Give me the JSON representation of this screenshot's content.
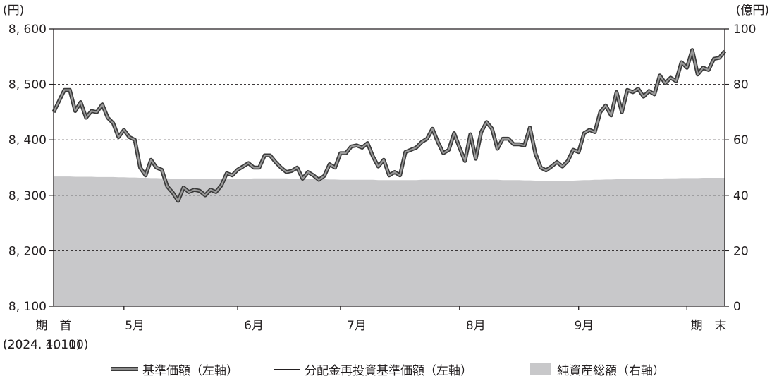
{
  "chart_data": {
    "type": "line",
    "left_unit": "(円)",
    "right_unit": "(億円)",
    "y_left": {
      "min": 8100,
      "max": 8600,
      "ticks": [
        8100,
        8200,
        8300,
        8400,
        8500,
        8600
      ],
      "tick_labels": [
        "8, 100",
        "8, 200",
        "8, 300",
        "8, 400",
        "8, 500",
        "8, 600"
      ]
    },
    "y_right": {
      "min": 0,
      "max": 100,
      "ticks": [
        0,
        20,
        40,
        60,
        80,
        100
      ],
      "tick_labels": [
        "0",
        "20",
        "40",
        "60",
        "80",
        "100"
      ]
    },
    "x_labels": [
      {
        "text": "期　首",
        "sub": "(2024. 4. 10)",
        "index": 0
      },
      {
        "text": "5月",
        "index": 15
      },
      {
        "text": "6月",
        "index": 37
      },
      {
        "text": "7月",
        "index": 56
      },
      {
        "text": "8月",
        "index": 78
      },
      {
        "text": "9月",
        "index": 98
      },
      {
        "text": "期　末",
        "sub": "(2024. 10. 10)",
        "index": 121
      }
    ],
    "month_ticks": [
      13,
      34,
      53,
      75,
      97,
      117
    ],
    "grid": true,
    "series": [
      {
        "name": "基準価額（左軸）",
        "axis": "left",
        "style": "thick",
        "values": [
          8450,
          8470,
          8490,
          8490,
          8452,
          8468,
          8440,
          8452,
          8450,
          8464,
          8440,
          8430,
          8405,
          8418,
          8405,
          8400,
          8350,
          8336,
          8364,
          8350,
          8346,
          8316,
          8305,
          8290,
          8314,
          8306,
          8310,
          8308,
          8300,
          8310,
          8306,
          8318,
          8340,
          8336,
          8346,
          8352,
          8358,
          8350,
          8350,
          8372,
          8372,
          8360,
          8350,
          8342,
          8344,
          8350,
          8330,
          8342,
          8336,
          8328,
          8335,
          8356,
          8350,
          8376,
          8376,
          8388,
          8390,
          8386,
          8394,
          8370,
          8352,
          8364,
          8336,
          8342,
          8336,
          8378,
          8382,
          8386,
          8396,
          8402,
          8420,
          8396,
          8376,
          8382,
          8412,
          8386,
          8362,
          8410,
          8366,
          8414,
          8432,
          8420,
          8384,
          8402,
          8402,
          8392,
          8392,
          8390,
          8422,
          8376,
          8350,
          8345,
          8352,
          8360,
          8352,
          8362,
          8382,
          8378,
          8412,
          8418,
          8414,
          8450,
          8462,
          8444,
          8486,
          8450,
          8490,
          8486,
          8492,
          8478,
          8488,
          8482,
          8516,
          8502,
          8512,
          8506,
          8540,
          8530,
          8562,
          8518,
          8530,
          8526,
          8546,
          8548,
          8560
        ]
      },
      {
        "name": "分配金再投資基準価額（左軸）",
        "axis": "left",
        "style": "thin",
        "values": [
          8450,
          8470,
          8490,
          8490,
          8452,
          8468,
          8440,
          8452,
          8450,
          8464,
          8440,
          8430,
          8405,
          8418,
          8405,
          8400,
          8350,
          8336,
          8364,
          8350,
          8346,
          8316,
          8305,
          8290,
          8314,
          8306,
          8310,
          8308,
          8300,
          8310,
          8306,
          8318,
          8340,
          8336,
          8346,
          8352,
          8358,
          8350,
          8350,
          8372,
          8372,
          8360,
          8350,
          8342,
          8344,
          8350,
          8330,
          8342,
          8336,
          8328,
          8335,
          8356,
          8350,
          8376,
          8376,
          8388,
          8390,
          8386,
          8394,
          8370,
          8352,
          8364,
          8336,
          8342,
          8336,
          8378,
          8382,
          8386,
          8396,
          8402,
          8420,
          8396,
          8376,
          8382,
          8412,
          8386,
          8362,
          8410,
          8366,
          8414,
          8432,
          8420,
          8384,
          8402,
          8402,
          8392,
          8392,
          8390,
          8422,
          8376,
          8350,
          8345,
          8352,
          8360,
          8352,
          8362,
          8382,
          8378,
          8412,
          8418,
          8414,
          8450,
          8462,
          8444,
          8486,
          8450,
          8490,
          8486,
          8492,
          8478,
          8488,
          8482,
          8516,
          8502,
          8512,
          8506,
          8540,
          8530,
          8562,
          8518,
          8530,
          8526,
          8546,
          8548,
          8560
        ]
      },
      {
        "name": "純資産総額（右軸）",
        "axis": "right",
        "style": "area",
        "values": [
          46.8,
          46.8,
          46.8,
          46.8,
          46.7,
          46.7,
          46.7,
          46.7,
          46.6,
          46.6,
          46.6,
          46.6,
          46.5,
          46.5,
          46.4,
          46.4,
          46.3,
          46.3,
          46.2,
          46.2,
          46.1,
          46.1,
          46.0,
          46.0,
          46.0,
          46.0,
          46.0,
          46.0,
          45.9,
          45.9,
          45.9,
          45.9,
          45.9,
          45.9,
          46.0,
          46.0,
          46.0,
          46.1,
          46.1,
          46.1,
          46.1,
          46.1,
          46.1,
          46.1,
          46.0,
          46.0,
          46.0,
          45.9,
          45.9,
          45.9,
          45.8,
          45.7,
          45.7,
          45.6,
          45.6,
          45.6,
          45.6,
          45.6,
          45.6,
          45.6,
          45.5,
          45.5,
          45.5,
          45.5,
          45.5,
          45.5,
          45.5,
          45.5,
          45.6,
          45.6,
          45.6,
          45.6,
          45.6,
          45.6,
          45.6,
          45.6,
          45.6,
          45.6,
          45.6,
          45.6,
          45.6,
          45.6,
          45.6,
          45.5,
          45.5,
          45.5,
          45.5,
          45.4,
          45.4,
          45.3,
          45.3,
          45.2,
          45.2,
          45.2,
          45.2,
          45.3,
          45.3,
          45.4,
          45.5,
          45.5,
          45.6,
          45.6,
          45.7,
          45.7,
          45.8,
          45.8,
          45.8,
          45.9,
          45.9,
          45.9,
          46.0,
          46.0,
          46.0,
          46.1,
          46.1,
          46.1,
          46.2,
          46.2,
          46.2,
          46.2,
          46.3,
          46.3,
          46.3,
          46.3,
          46.3
        ]
      }
    ]
  },
  "colors": {
    "area": "#c8c8ca",
    "line_outer": "#3a3a3a",
    "line_inner": "#9a9a9a",
    "thin_line": "#231f20",
    "grid": "#231f20"
  }
}
